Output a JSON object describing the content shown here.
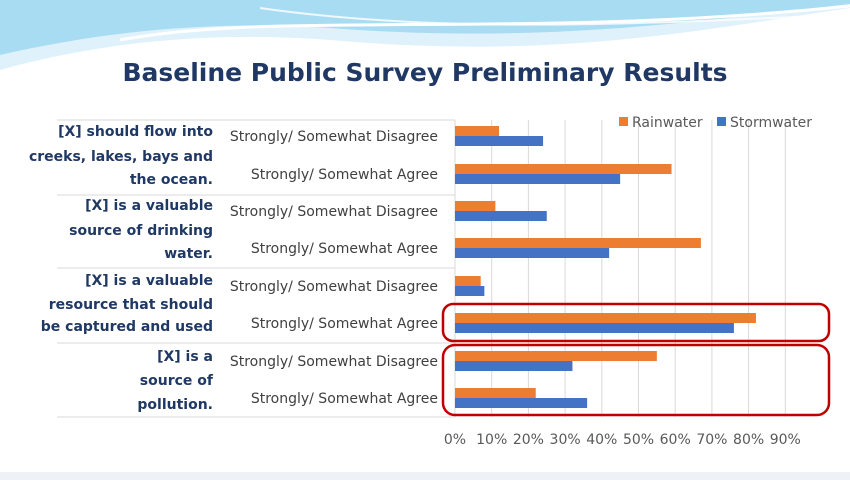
{
  "slide": {
    "title": "Baseline Public Survey Preliminary Results"
  },
  "chart_data": {
    "type": "bar",
    "orientation": "horizontal",
    "groups": [
      {
        "label": [
          "[X] should flow into",
          "creeks, lakes, bays and",
          "the ocean."
        ],
        "categories": [
          "Strongly/ Somewhat Disagree",
          "Strongly/ Somewhat Agree"
        ]
      },
      {
        "label": [
          "[X] is a valuable",
          "source of drinking",
          "water."
        ],
        "categories": [
          "Strongly/ Somewhat Disagree",
          "Strongly/ Somewhat Agree"
        ]
      },
      {
        "label": [
          "[X] is a valuable",
          "resource that should",
          "be captured and used"
        ],
        "categories": [
          "Strongly/ Somewhat Disagree",
          "Strongly/ Somewhat Agree"
        ]
      },
      {
        "label": [
          "[X] is a",
          "source of",
          "pollution."
        ],
        "categories": [
          "Strongly/ Somewhat Disagree",
          "Strongly/ Somewhat Agree"
        ]
      }
    ],
    "series": [
      {
        "name": "Rainwater",
        "color": "#ed7d31",
        "values": [
          12,
          59,
          11,
          67,
          7,
          82,
          55,
          22
        ]
      },
      {
        "name": "Stormwater",
        "color": "#4472c4",
        "values": [
          24,
          45,
          25,
          42,
          8,
          76,
          32,
          36
        ]
      }
    ],
    "xlim": [
      0,
      90
    ],
    "xticks": [
      "0%",
      "10%",
      "20%",
      "30%",
      "40%",
      "50%",
      "60%",
      "70%",
      "80%",
      "90%"
    ],
    "legend": "top-right",
    "grid": true,
    "highlighted_groups": [
      2,
      3
    ],
    "highlight_color": "#c00000"
  }
}
